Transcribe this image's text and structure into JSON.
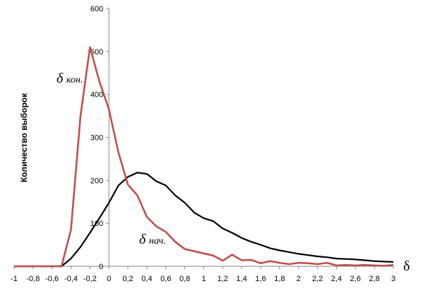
{
  "chart_data": {
    "type": "line",
    "title": "",
    "ylabel": "Количество выборок",
    "xlabel": "δ",
    "xlim": [
      -1,
      3
    ],
    "ylim": [
      0,
      600
    ],
    "x_tick_labels": [
      "-1",
      "-0,8",
      "-0,6",
      "-0,4",
      "-0,2",
      "0",
      "0,2",
      "0,4",
      "0,6",
      "0,8",
      "1",
      "1,2",
      "1,4",
      "1,6",
      "1,8",
      "2",
      "2,2",
      "2,4",
      "2,6",
      "2,8",
      "3"
    ],
    "y_tick_labels": [
      "0",
      "100",
      "200",
      "300",
      "400",
      "500",
      "600"
    ],
    "grid": false,
    "legend": "none",
    "x": [
      -1,
      -0.9,
      -0.8,
      -0.7,
      -0.6,
      -0.5,
      -0.4,
      -0.3,
      -0.2,
      -0.1,
      0,
      0.1,
      0.2,
      0.3,
      0.4,
      0.5,
      0.6,
      0.7,
      0.8,
      0.9,
      1.0,
      1.1,
      1.2,
      1.3,
      1.4,
      1.5,
      1.6,
      1.7,
      1.8,
      1.9,
      2.0,
      2.1,
      2.2,
      2.3,
      2.4,
      2.5,
      2.6,
      2.7,
      2.8,
      2.9,
      3.0
    ],
    "series": [
      {
        "name": "δ кон.",
        "color": "#c0504d",
        "values": [
          0,
          0,
          0,
          0,
          0,
          0,
          85,
          350,
          510,
          430,
          365,
          265,
          190,
          165,
          115,
          93,
          80,
          57,
          40,
          35,
          30,
          25,
          13,
          27,
          14,
          15,
          7,
          12,
          8,
          5,
          8,
          7,
          5,
          8,
          2,
          3,
          2,
          3,
          2,
          1,
          3
        ]
      },
      {
        "name": "δ нач.",
        "color": "#000000",
        "values": [
          0,
          0,
          0,
          0,
          0,
          0,
          18,
          45,
          78,
          112,
          148,
          188,
          208,
          218,
          215,
          198,
          188,
          165,
          148,
          125,
          112,
          105,
          88,
          78,
          66,
          57,
          50,
          42,
          37,
          33,
          29,
          26,
          23,
          21,
          18,
          17,
          16,
          14,
          12,
          11,
          10
        ]
      }
    ],
    "annotations": [
      {
        "series": 0,
        "delta": "δ",
        "sub": "кон."
      },
      {
        "series": 1,
        "delta": "δ",
        "sub": "нач."
      }
    ]
  }
}
